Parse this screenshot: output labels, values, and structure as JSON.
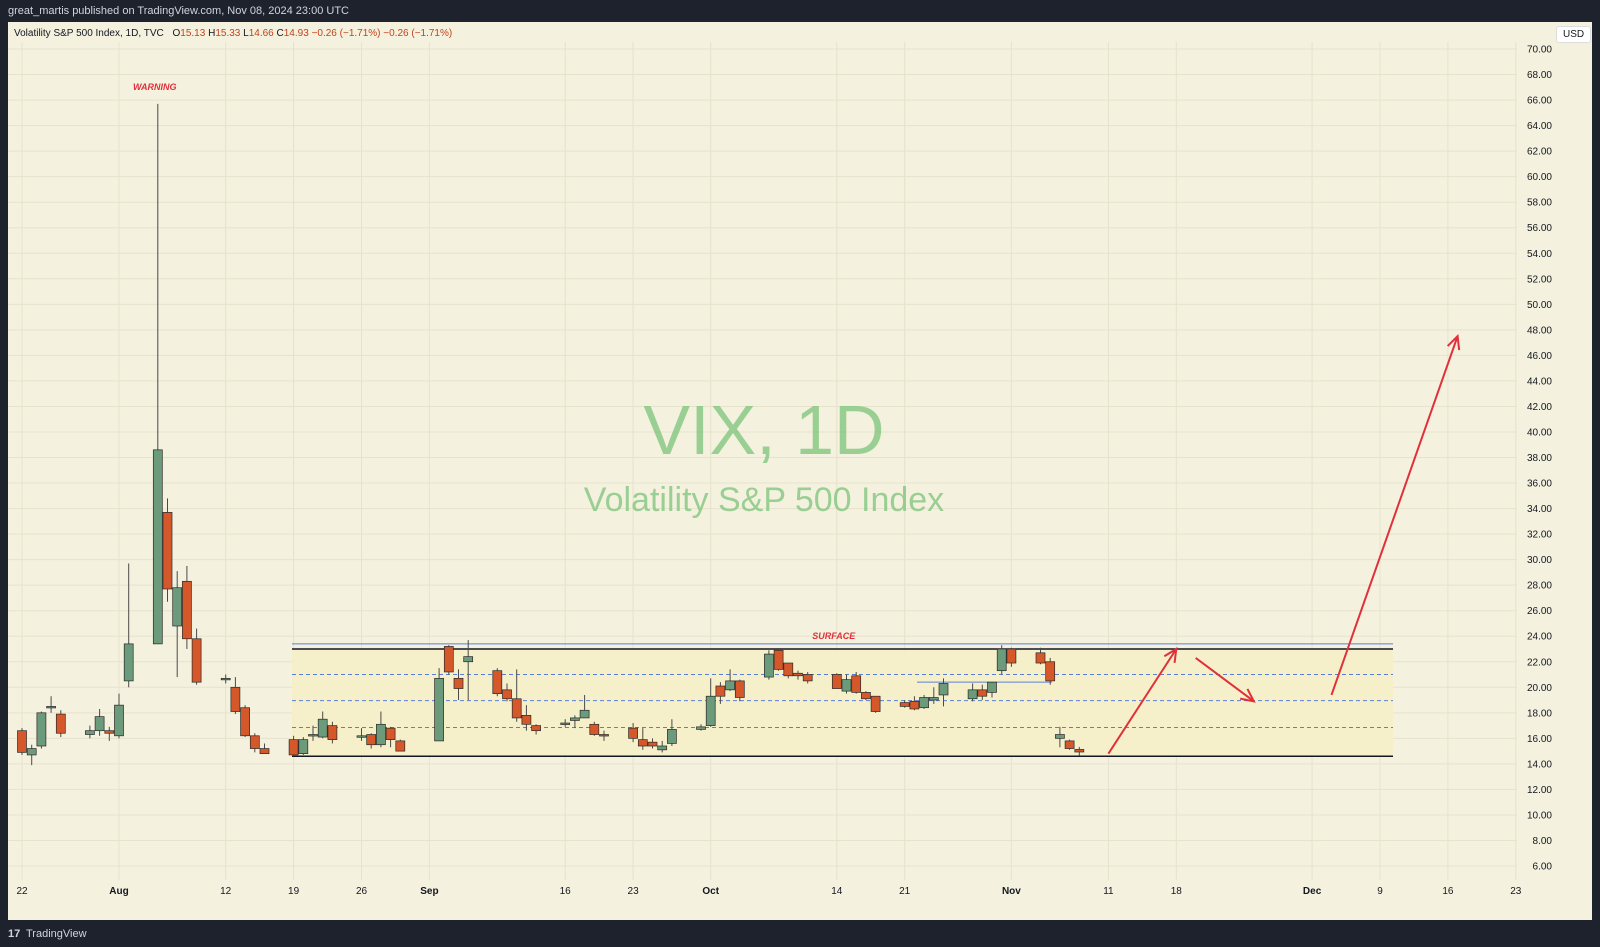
{
  "header": {
    "publisher": "great_martis published on TradingView.com, Nov 08, 2024 23:00 UTC"
  },
  "legend": {
    "symbol": "Volatility S&P 500 Index, 1D, TVC",
    "o_label": "O",
    "o": "15.13",
    "h_label": "H",
    "h": "15.33",
    "l_label": "L",
    "l": "14.66",
    "c_label": "C",
    "c": "14.93",
    "change": "−0.26 (−1.71%)",
    "change2": "−0.26 (−1.71%)"
  },
  "currency": "USD",
  "watermark": {
    "line1": "VIX, 1D",
    "line2": "Volatility S&P 500 Index"
  },
  "footer": {
    "logo": "17",
    "brand": "TradingView"
  },
  "colors": {
    "up": "#6b9b7a",
    "down": "#d5582a",
    "arrow": "#e0303a",
    "band": "#f6efc8"
  },
  "chart_data": {
    "type": "candlestick",
    "title": "VIX, 1D",
    "subtitle": "Volatility S&P 500 Index",
    "ylim": [
      6,
      70
    ],
    "y_ticks": [
      "6.00",
      "8.00",
      "10.00",
      "12.00",
      "14.00",
      "16.00",
      "18.00",
      "20.00",
      "22.00",
      "24.00",
      "26.00",
      "28.00",
      "30.00",
      "32.00",
      "34.00",
      "36.00",
      "38.00",
      "40.00",
      "42.00",
      "44.00",
      "46.00",
      "48.00",
      "50.00",
      "52.00",
      "54.00",
      "56.00",
      "58.00",
      "60.00",
      "62.00",
      "64.00",
      "66.00",
      "68.00",
      "70.00"
    ],
    "x_ticks": [
      {
        "label": "22",
        "bold": false,
        "date": "2024-07-22"
      },
      {
        "label": "Aug",
        "bold": true,
        "date": "2024-08-01"
      },
      {
        "label": "12",
        "bold": false,
        "date": "2024-08-12"
      },
      {
        "label": "19",
        "bold": false,
        "date": "2024-08-19"
      },
      {
        "label": "26",
        "bold": false,
        "date": "2024-08-26"
      },
      {
        "label": "Sep",
        "bold": true,
        "date": "2024-09-02"
      },
      {
        "label": "16",
        "bold": false,
        "date": "2024-09-16"
      },
      {
        "label": "23",
        "bold": false,
        "date": "2024-09-23"
      },
      {
        "label": "Oct",
        "bold": true,
        "date": "2024-10-01"
      },
      {
        "label": "14",
        "bold": false,
        "date": "2024-10-14"
      },
      {
        "label": "21",
        "bold": false,
        "date": "2024-10-21"
      },
      {
        "label": "Nov",
        "bold": true,
        "date": "2024-11-01"
      },
      {
        "label": "11",
        "bold": false,
        "date": "2024-11-11"
      },
      {
        "label": "18",
        "bold": false,
        "date": "2024-11-18"
      },
      {
        "label": "Dec",
        "bold": true,
        "date": "2024-12-02"
      },
      {
        "label": "9",
        "bold": false,
        "date": "2024-12-09"
      },
      {
        "label": "16",
        "bold": false,
        "date": "2024-12-16"
      },
      {
        "label": "23",
        "bold": false,
        "date": "2024-12-23"
      }
    ],
    "candles": [
      {
        "date": "2024-07-19",
        "o": 16.5,
        "h": 16.7,
        "l": 15.5,
        "c": 16.5
      },
      {
        "date": "2024-07-22",
        "o": 16.6,
        "h": 16.8,
        "l": 14.7,
        "c": 14.9
      },
      {
        "date": "2024-07-23",
        "o": 14.7,
        "h": 15.5,
        "l": 13.9,
        "c": 15.2
      },
      {
        "date": "2024-07-24",
        "o": 15.4,
        "h": 18.1,
        "l": 15.2,
        "c": 18.0
      },
      {
        "date": "2024-07-25",
        "o": 18.4,
        "h": 19.3,
        "l": 18.0,
        "c": 18.5
      },
      {
        "date": "2024-07-26",
        "o": 17.9,
        "h": 18.2,
        "l": 16.1,
        "c": 16.4
      },
      {
        "date": "2024-07-29",
        "o": 16.3,
        "h": 17.0,
        "l": 16.0,
        "c": 16.6
      },
      {
        "date": "2024-07-30",
        "o": 16.6,
        "h": 18.3,
        "l": 16.2,
        "c": 17.7
      },
      {
        "date": "2024-07-31",
        "o": 16.6,
        "h": 16.9,
        "l": 15.8,
        "c": 16.4
      },
      {
        "date": "2024-08-01",
        "o": 16.2,
        "h": 19.5,
        "l": 16.0,
        "c": 18.6
      },
      {
        "date": "2024-08-02",
        "o": 20.5,
        "h": 29.7,
        "l": 20.0,
        "c": 23.4
      },
      {
        "date": "2024-08-05",
        "o": 23.4,
        "h": 65.7,
        "l": 23.4,
        "c": 38.6
      },
      {
        "date": "2024-08-06",
        "o": 33.7,
        "h": 34.8,
        "l": 26.7,
        "c": 27.7
      },
      {
        "date": "2024-08-07",
        "o": 24.8,
        "h": 29.1,
        "l": 20.8,
        "c": 27.8
      },
      {
        "date": "2024-08-08",
        "o": 28.3,
        "h": 29.5,
        "l": 23.0,
        "c": 23.8
      },
      {
        "date": "2024-08-09",
        "o": 23.8,
        "h": 24.6,
        "l": 20.2,
        "c": 20.4
      },
      {
        "date": "2024-08-12",
        "o": 20.7,
        "h": 21.0,
        "l": 20.3,
        "c": 20.7
      },
      {
        "date": "2024-08-13",
        "o": 20.0,
        "h": 20.8,
        "l": 17.9,
        "c": 18.1
      },
      {
        "date": "2024-08-14",
        "o": 18.4,
        "h": 18.6,
        "l": 16.1,
        "c": 16.2
      },
      {
        "date": "2024-08-15",
        "o": 16.2,
        "h": 16.4,
        "l": 14.9,
        "c": 15.2
      },
      {
        "date": "2024-08-16",
        "o": 15.2,
        "h": 15.6,
        "l": 14.8,
        "c": 14.8
      },
      {
        "date": "2024-08-19",
        "o": 15.9,
        "h": 16.2,
        "l": 14.6,
        "c": 14.7
      },
      {
        "date": "2024-08-20",
        "o": 14.8,
        "h": 16.1,
        "l": 14.7,
        "c": 15.9
      },
      {
        "date": "2024-08-21",
        "o": 16.3,
        "h": 17.0,
        "l": 15.8,
        "c": 16.3
      },
      {
        "date": "2024-08-22",
        "o": 16.1,
        "h": 18.1,
        "l": 16.0,
        "c": 17.5
      },
      {
        "date": "2024-08-23",
        "o": 17.0,
        "h": 17.3,
        "l": 15.6,
        "c": 15.9
      },
      {
        "date": "2024-08-26",
        "o": 16.2,
        "h": 16.8,
        "l": 15.8,
        "c": 16.2
      },
      {
        "date": "2024-08-27",
        "o": 16.3,
        "h": 16.4,
        "l": 15.2,
        "c": 15.5
      },
      {
        "date": "2024-08-28",
        "o": 15.5,
        "h": 18.1,
        "l": 15.3,
        "c": 17.1
      },
      {
        "date": "2024-08-29",
        "o": 16.8,
        "h": 16.9,
        "l": 15.3,
        "c": 15.9
      },
      {
        "date": "2024-08-30",
        "o": 15.8,
        "h": 15.9,
        "l": 15.0,
        "c": 15.0
      },
      {
        "date": "2024-09-03",
        "o": 15.8,
        "h": 21.5,
        "l": 15.8,
        "c": 20.7
      },
      {
        "date": "2024-09-04",
        "o": 23.2,
        "h": 23.3,
        "l": 21.0,
        "c": 21.2
      },
      {
        "date": "2024-09-05",
        "o": 20.7,
        "h": 21.4,
        "l": 19.0,
        "c": 19.9
      },
      {
        "date": "2024-09-06",
        "o": 22.0,
        "h": 23.7,
        "l": 19.0,
        "c": 22.4
      },
      {
        "date": "2024-09-09",
        "o": 21.3,
        "h": 21.5,
        "l": 19.3,
        "c": 19.5
      },
      {
        "date": "2024-09-10",
        "o": 19.8,
        "h": 20.3,
        "l": 18.9,
        "c": 19.1
      },
      {
        "date": "2024-09-11",
        "o": 19.1,
        "h": 21.4,
        "l": 17.3,
        "c": 17.6
      },
      {
        "date": "2024-09-12",
        "o": 17.8,
        "h": 18.6,
        "l": 16.6,
        "c": 17.1
      },
      {
        "date": "2024-09-13",
        "o": 17.0,
        "h": 17.1,
        "l": 16.3,
        "c": 16.6
      },
      {
        "date": "2024-09-16",
        "o": 17.2,
        "h": 17.5,
        "l": 16.9,
        "c": 17.2
      },
      {
        "date": "2024-09-17",
        "o": 17.4,
        "h": 17.8,
        "l": 16.8,
        "c": 17.6
      },
      {
        "date": "2024-09-18",
        "o": 17.6,
        "h": 19.4,
        "l": 17.6,
        "c": 18.2
      },
      {
        "date": "2024-09-19",
        "o": 17.1,
        "h": 17.3,
        "l": 16.2,
        "c": 16.3
      },
      {
        "date": "2024-09-20",
        "o": 16.3,
        "h": 16.6,
        "l": 15.8,
        "c": 16.2
      },
      {
        "date": "2024-09-23",
        "o": 16.8,
        "h": 17.2,
        "l": 15.7,
        "c": 16.0
      },
      {
        "date": "2024-09-24",
        "o": 15.9,
        "h": 16.8,
        "l": 15.1,
        "c": 15.4
      },
      {
        "date": "2024-09-25",
        "o": 15.7,
        "h": 16.0,
        "l": 15.2,
        "c": 15.4
      },
      {
        "date": "2024-09-26",
        "o": 15.1,
        "h": 15.8,
        "l": 14.9,
        "c": 15.4
      },
      {
        "date": "2024-09-27",
        "o": 15.6,
        "h": 17.5,
        "l": 15.4,
        "c": 16.7
      },
      {
        "date": "2024-09-30",
        "o": 16.7,
        "h": 17.1,
        "l": 16.6,
        "c": 16.9
      },
      {
        "date": "2024-10-01",
        "o": 17.0,
        "h": 20.7,
        "l": 16.9,
        "c": 19.3
      },
      {
        "date": "2024-10-02",
        "o": 20.1,
        "h": 20.4,
        "l": 18.7,
        "c": 19.3
      },
      {
        "date": "2024-10-03",
        "o": 19.8,
        "h": 21.4,
        "l": 19.7,
        "c": 20.5
      },
      {
        "date": "2024-10-04",
        "o": 20.5,
        "h": 20.6,
        "l": 18.9,
        "c": 19.2
      },
      {
        "date": "2024-10-07",
        "o": 20.8,
        "h": 22.9,
        "l": 20.6,
        "c": 22.6
      },
      {
        "date": "2024-10-08",
        "o": 22.9,
        "h": 23.0,
        "l": 21.3,
        "c": 21.4
      },
      {
        "date": "2024-10-09",
        "o": 21.9,
        "h": 21.9,
        "l": 20.7,
        "c": 20.9
      },
      {
        "date": "2024-10-10",
        "o": 21.1,
        "h": 21.3,
        "l": 20.6,
        "c": 20.9
      },
      {
        "date": "2024-10-11",
        "o": 21.0,
        "h": 21.2,
        "l": 20.3,
        "c": 20.5
      },
      {
        "date": "2024-10-14",
        "o": 21.0,
        "h": 21.1,
        "l": 19.9,
        "c": 19.9
      },
      {
        "date": "2024-10-15",
        "o": 19.7,
        "h": 21.0,
        "l": 19.5,
        "c": 20.6
      },
      {
        "date": "2024-10-16",
        "o": 20.9,
        "h": 21.2,
        "l": 19.5,
        "c": 19.6
      },
      {
        "date": "2024-10-17",
        "o": 19.6,
        "h": 19.7,
        "l": 19.0,
        "c": 19.1
      },
      {
        "date": "2024-10-18",
        "o": 19.3,
        "h": 19.3,
        "l": 18.0,
        "c": 18.1
      },
      {
        "date": "2024-10-21",
        "o": 18.8,
        "h": 19.0,
        "l": 18.4,
        "c": 18.5
      },
      {
        "date": "2024-10-22",
        "o": 18.9,
        "h": 19.3,
        "l": 18.2,
        "c": 18.3
      },
      {
        "date": "2024-10-23",
        "o": 18.4,
        "h": 19.4,
        "l": 18.3,
        "c": 19.2
      },
      {
        "date": "2024-10-24",
        "o": 19.0,
        "h": 20.0,
        "l": 18.7,
        "c": 19.2
      },
      {
        "date": "2024-10-25",
        "o": 19.4,
        "h": 20.7,
        "l": 18.5,
        "c": 20.3
      },
      {
        "date": "2024-10-28",
        "o": 19.1,
        "h": 20.3,
        "l": 18.9,
        "c": 19.8
      },
      {
        "date": "2024-10-29",
        "o": 19.8,
        "h": 20.2,
        "l": 19.0,
        "c": 19.3
      },
      {
        "date": "2024-10-30",
        "o": 19.6,
        "h": 20.4,
        "l": 19.2,
        "c": 20.4
      },
      {
        "date": "2024-10-31",
        "o": 21.3,
        "h": 23.3,
        "l": 21.0,
        "c": 23.0
      },
      {
        "date": "2024-11-01",
        "o": 23.0,
        "h": 23.1,
        "l": 21.6,
        "c": 21.9
      },
      {
        "date": "2024-11-04",
        "o": 22.7,
        "h": 23.1,
        "l": 21.8,
        "c": 21.9
      },
      {
        "date": "2024-11-05",
        "o": 22.0,
        "h": 22.3,
        "l": 20.2,
        "c": 20.5
      },
      {
        "date": "2024-11-06",
        "o": 16.0,
        "h": 16.9,
        "l": 15.3,
        "c": 16.3
      },
      {
        "date": "2024-11-07",
        "o": 15.8,
        "h": 15.9,
        "l": 15.1,
        "c": 15.2
      },
      {
        "date": "2024-11-08",
        "o": 15.13,
        "h": 15.33,
        "l": 14.66,
        "c": 14.93
      }
    ],
    "levels": {
      "support": 14.6,
      "resistance": 23.0,
      "surface": 23.4,
      "dashed": [
        21.0,
        18.95,
        16.85
      ],
      "short_line": 20.4
    },
    "annotations": [
      {
        "text": "WARNING",
        "date": "2024-08-05",
        "y": 66.8
      },
      {
        "text": "SURFACE",
        "date": "2024-10-14",
        "y": 23.8
      }
    ],
    "arrows": [
      {
        "from": {
          "date": "2024-11-11",
          "y": 14.8
        },
        "to": {
          "date": "2024-11-18",
          "y": 23.0
        }
      },
      {
        "from": {
          "date": "2024-11-20",
          "y": 22.3
        },
        "to": {
          "date": "2024-11-26",
          "y": 18.9
        }
      },
      {
        "from": {
          "date": "2024-12-04",
          "y": 19.4
        },
        "to": {
          "date": "2024-12-17",
          "y": 47.5
        }
      }
    ]
  }
}
